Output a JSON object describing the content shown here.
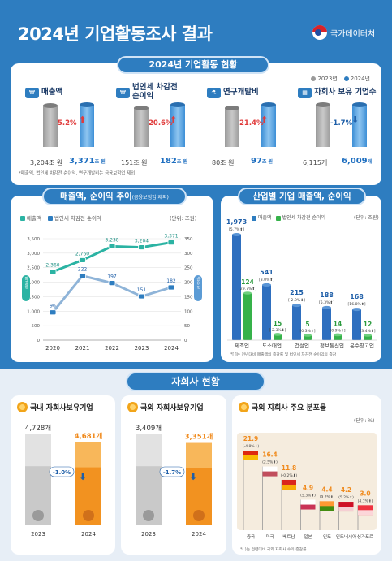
{
  "header": {
    "title": "2024년 기업활동조사 결과",
    "logo_text": "국가데이터처"
  },
  "section1": {
    "pill": "2024년 기업활동 현황",
    "legend": [
      "2023년",
      "2024년"
    ],
    "indicators": [
      {
        "title": "매출액",
        "v2023": "3,204",
        "u2023": "조 원",
        "v2024": "3,371",
        "u2024": "조 원",
        "change": "5.2%",
        "dir": "up"
      },
      {
        "title": "법인세 차감전\n순이익",
        "v2023": "151",
        "u2023": "조 원",
        "v2024": "182",
        "u2024": "조 원",
        "change": "20.6%",
        "dir": "up"
      },
      {
        "title": "연구개발비",
        "v2023": "80",
        "u2023": "조 원",
        "v2024": "97",
        "u2024": "조 원",
        "change": "21.4%",
        "dir": "up"
      },
      {
        "title": "자회사 보유 기업수",
        "v2023": "6,115",
        "u2023": "개",
        "v2024": "6,009",
        "u2024": "개",
        "change": "-1.7%",
        "dir": "down"
      }
    ],
    "footnote": "*매출액, 법인세 차감전 순이익, 연구개발비는 금융보험업 제외"
  },
  "section2": {
    "pill": "매출액, 순이익 추이",
    "pill_note": "(금융보험업 제외)",
    "legend": [
      "매출액",
      "법인세 차감전 순이익"
    ],
    "unit": "(단위: 조원)",
    "left_axis_label": "매출액",
    "right_axis_label": "순이익",
    "chart_data": {
      "type": "line",
      "x": [
        "2020",
        "2021",
        "2022",
        "2023",
        "2024"
      ],
      "series": [
        {
          "name": "매출액",
          "values": [
            2360,
            2760,
            3238,
            3204,
            3371
          ],
          "labels": [
            "2,360",
            "2,760",
            "3,238",
            "3,204",
            "3,371"
          ],
          "axis": "left"
        },
        {
          "name": "법인세 차감전 순이익",
          "values": [
            96,
            222,
            197,
            151,
            182
          ],
          "labels": [
            "96",
            "222",
            "197",
            "151",
            "182"
          ],
          "axis": "right"
        }
      ],
      "left_ticks": [
        "3,500",
        "3,000",
        "2,500",
        "2,000",
        "1,500",
        "1,000",
        "500",
        "0"
      ],
      "right_ticks": [
        "350",
        "300",
        "250",
        "200",
        "150",
        "100",
        "50",
        "0"
      ],
      "ylim_left": [
        0,
        3500
      ],
      "ylim_right": [
        0,
        350
      ]
    }
  },
  "section3": {
    "pill": "산업별 기업 매출액, 순이익",
    "legend": [
      "매출액",
      "법인세 차감전 순이익"
    ],
    "unit": "(단위: 조원)",
    "chart_data": {
      "type": "bar",
      "categories": [
        "제조업",
        "도소매업",
        "건설업",
        "정보통신업",
        "운수창고업"
      ],
      "series": [
        {
          "name": "매출액",
          "values": [
            1973,
            541,
            215,
            188,
            168
          ],
          "labels": [
            "1,973",
            "541",
            "215",
            "188",
            "168"
          ],
          "changes": [
            "[5.7%⬆]",
            "[3.0%⬆]",
            "[-2.9%⬇]",
            "[5.3%⬆]",
            "[16.8%⬆]"
          ]
        },
        {
          "name": "법인세 차감전 순이익",
          "values": [
            124,
            15,
            5,
            14,
            12
          ],
          "labels": [
            "124",
            "15",
            "5",
            "14",
            "12"
          ],
          "changes": [
            "[29.7%⬆]",
            "[-2.3%⬇]",
            "[0.3%⬆]",
            "[0.9%⬆]",
            "[3.4%⬆]"
          ]
        }
      ]
    },
    "footnote": "*[ ]는 전년대비 매출액의 증감률 및 법인세 차감전 순이익의 증감"
  },
  "section4": {
    "pill": "자회사 현황",
    "domestic": {
      "title": "국내 자회사보유기업",
      "v2023": "4,728",
      "u2023": "개",
      "v2024": "4,681",
      "u2024": "개",
      "change": "-1.0%",
      "years": [
        "2023",
        "2024"
      ]
    },
    "foreign": {
      "title": "국외 자회사보유기업",
      "v2023": "3,409",
      "u2023": "개",
      "v2024": "3,351",
      "u2024": "개",
      "change": "-1.7%",
      "years": [
        "2023",
        "2024"
      ]
    },
    "dist": {
      "title": "국외 자회사 주요 분포율",
      "unit": "(단위: %)",
      "chart_data": {
        "type": "bar",
        "categories": [
          "중국",
          "미국",
          "베트남",
          "일본",
          "인도",
          "인도네시아",
          "싱가포르"
        ],
        "values": [
          21.9,
          16.4,
          11.8,
          4.9,
          4.4,
          4.2,
          3.0
        ],
        "labels": [
          "21.9",
          "16.4",
          "11.8",
          "4.9",
          "4.4",
          "4.2",
          "3.0"
        ],
        "changes": [
          "(-4.8%⬇)",
          "(2.5%⬆)",
          "(-0.2%⬇)",
          "(5.3%⬆)",
          "(9.2%⬆)",
          "(5.2%⬆)",
          "(4.1%⬆)"
        ]
      },
      "footnote": "*( )는 전년대비 국외 자회사 수의 증감률"
    }
  },
  "colors": {
    "blue": "#2e7dc0",
    "teal": "#2bb3a3",
    "green": "#36b24a",
    "orange": "#f08a1c",
    "red": "#e03b3b",
    "gray": "#9a9a9a"
  }
}
